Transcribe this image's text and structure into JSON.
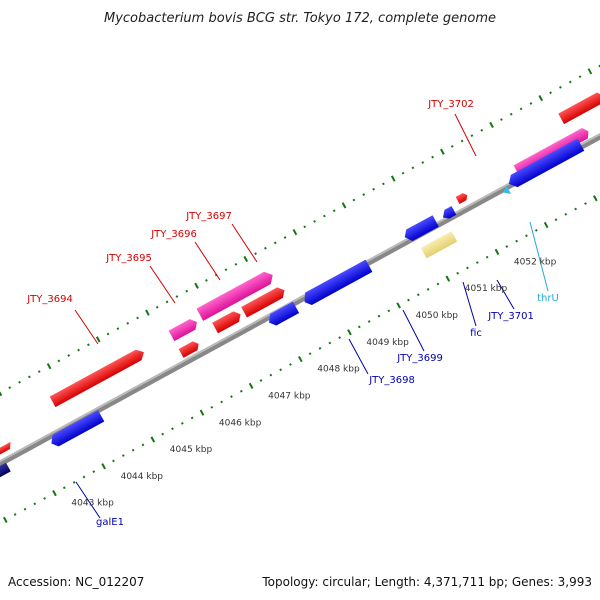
{
  "title": "Mycobacterium bovis BCG str. Tokyo 172, complete genome",
  "footer": {
    "accession": "Accession: NC_012207",
    "summary": "Topology: circular; Length: 4,371,711 bp; Genes: 3,993"
  },
  "scale": {
    "unit": "kbp",
    "ticks": [
      {
        "label": "4043 kbp",
        "kbp": 4043
      },
      {
        "label": "4044 kbp",
        "kbp": 4044
      },
      {
        "label": "4045 kbp",
        "kbp": 4045
      },
      {
        "label": "4046 kbp",
        "kbp": 4046
      },
      {
        "label": "4047 kbp",
        "kbp": 4047
      },
      {
        "label": "4048 kbp",
        "kbp": 4048
      },
      {
        "label": "4049 kbp",
        "kbp": 4049
      },
      {
        "label": "4050 kbp",
        "kbp": 4050
      },
      {
        "label": "4051 kbp",
        "kbp": 4051
      },
      {
        "label": "4052 kbp",
        "kbp": 4052
      }
    ]
  },
  "gene_labels": [
    {
      "label": "JTY_3694",
      "strand": "forward",
      "color": "#d40000"
    },
    {
      "label": "JTY_3695",
      "strand": "forward",
      "color": "#d40000"
    },
    {
      "label": "JTY_3696",
      "strand": "forward",
      "color": "#d40000"
    },
    {
      "label": "JTY_3697",
      "strand": "forward",
      "color": "#d40000"
    },
    {
      "label": "JTY_3702",
      "strand": "forward",
      "color": "#d40000"
    },
    {
      "label": "galE1",
      "strand": "reverse",
      "color": "#0000b0"
    },
    {
      "label": "JTY_3698",
      "strand": "reverse",
      "color": "#0000b0"
    },
    {
      "label": "JTY_3699",
      "strand": "reverse",
      "color": "#0000b0"
    },
    {
      "label": "fic",
      "strand": "reverse",
      "color": "#0000b0"
    },
    {
      "label": "JTY_3701",
      "strand": "reverse",
      "color": "#0000b0"
    },
    {
      "label": "thrU",
      "strand": "reverse",
      "color": "#22aadd"
    }
  ],
  "feature_colors": {
    "forward_cds": "#ee0000",
    "reverse_cds": "#0000ee",
    "forward_highlight": "#ee22aa",
    "reverse_highlight": "#eedd88",
    "rna": "#33bbee",
    "backbone": "#888888",
    "dots_forward": "#117711",
    "dots_reverse": "#117711"
  }
}
